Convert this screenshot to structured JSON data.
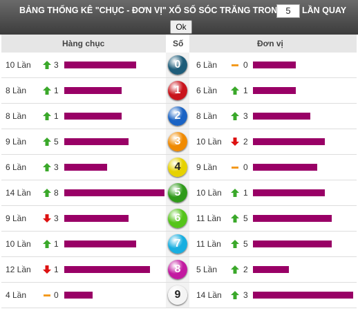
{
  "header": {
    "title": "BẢNG THỐNG KÊ \"CHỤC - ĐƠN VỊ\" XỔ SỐ SÓC TRĂNG TRONG",
    "input_value": "5",
    "suffix": "LẦN QUAY",
    "button": "Ok"
  },
  "table": {
    "columns": [
      "Hàng chục",
      "Số",
      "Đơn vị"
    ],
    "rows": [
      {
        "digit": "0",
        "tens": {
          "label": "10 Lần",
          "count": 10,
          "trend": "up",
          "delta": 3
        },
        "units": {
          "label": "6 Lần",
          "count": 6,
          "trend": "flat",
          "delta": 0
        }
      },
      {
        "digit": "1",
        "tens": {
          "label": "8 Lần",
          "count": 8,
          "trend": "up",
          "delta": 1
        },
        "units": {
          "label": "6 Lần",
          "count": 6,
          "trend": "up",
          "delta": 1
        }
      },
      {
        "digit": "2",
        "tens": {
          "label": "8 Lần",
          "count": 8,
          "trend": "up",
          "delta": 1
        },
        "units": {
          "label": "8 Lần",
          "count": 8,
          "trend": "up",
          "delta": 3
        }
      },
      {
        "digit": "3",
        "tens": {
          "label": "9 Lần",
          "count": 9,
          "trend": "up",
          "delta": 5
        },
        "units": {
          "label": "10 Lần",
          "count": 10,
          "trend": "down",
          "delta": 2
        }
      },
      {
        "digit": "4",
        "tens": {
          "label": "6 Lần",
          "count": 6,
          "trend": "up",
          "delta": 3
        },
        "units": {
          "label": "9 Lần",
          "count": 9,
          "trend": "flat",
          "delta": 0
        }
      },
      {
        "digit": "5",
        "tens": {
          "label": "14 Lần",
          "count": 14,
          "trend": "up",
          "delta": 8
        },
        "units": {
          "label": "10 Lần",
          "count": 10,
          "trend": "up",
          "delta": 1
        }
      },
      {
        "digit": "6",
        "tens": {
          "label": "9 Lần",
          "count": 9,
          "trend": "down",
          "delta": 3
        },
        "units": {
          "label": "11 Lần",
          "count": 11,
          "trend": "up",
          "delta": 5
        }
      },
      {
        "digit": "7",
        "tens": {
          "label": "10 Lần",
          "count": 10,
          "trend": "up",
          "delta": 1
        },
        "units": {
          "label": "11 Lần",
          "count": 11,
          "trend": "up",
          "delta": 5
        }
      },
      {
        "digit": "8",
        "tens": {
          "label": "12 Lần",
          "count": 12,
          "trend": "down",
          "delta": 1
        },
        "units": {
          "label": "5 Lần",
          "count": 5,
          "trend": "up",
          "delta": 2
        }
      },
      {
        "digit": "9",
        "tens": {
          "label": "4 Lần",
          "count": 4,
          "trend": "flat",
          "delta": 0
        },
        "units": {
          "label": "14 Lần",
          "count": 14,
          "trend": "up",
          "delta": 3
        }
      }
    ]
  }
}
